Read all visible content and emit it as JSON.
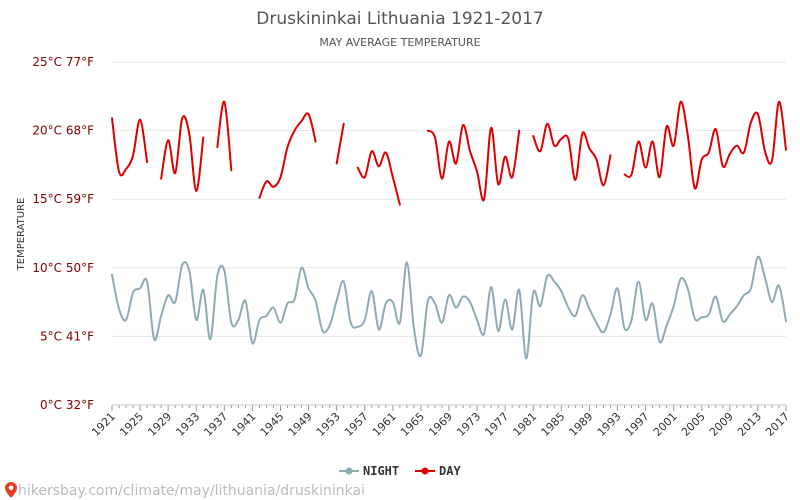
{
  "chart_data": {
    "type": "line",
    "title": "Druskininkai Lithuania 1921-2017",
    "subtitle": "MAY AVERAGE TEMPERATURE",
    "ylabel": "TEMPERATURE",
    "ylim": [
      0,
      25
    ],
    "xlim": [
      1921,
      2017
    ],
    "yticks": [
      {
        "value": 0,
        "label": "0°C 32°F"
      },
      {
        "value": 5,
        "label": "5°C 41°F"
      },
      {
        "value": 10,
        "label": "10°C 50°F"
      },
      {
        "value": 15,
        "label": "15°C 59°F"
      },
      {
        "value": 20,
        "label": "20°C 68°F"
      },
      {
        "value": 25,
        "label": "25°C 77°F"
      }
    ],
    "xticks": [
      1921,
      1925,
      1929,
      1933,
      1937,
      1941,
      1945,
      1949,
      1953,
      1957,
      1961,
      1965,
      1969,
      1973,
      1977,
      1981,
      1985,
      1989,
      1993,
      1997,
      2001,
      2005,
      2009,
      2013,
      2017
    ],
    "grid": true,
    "legend_position": "bottom-center",
    "series": [
      {
        "name": "NIGHT",
        "color": "#90aab4",
        "points": [
          [
            1921,
            9.5
          ],
          [
            1922,
            7.0
          ],
          [
            1923,
            6.2
          ],
          [
            1924,
            8.2
          ],
          [
            1925,
            8.5
          ],
          [
            1926,
            9.0
          ],
          [
            1927,
            4.8
          ],
          [
            1928,
            6.5
          ],
          [
            1929,
            8.0
          ],
          [
            1930,
            7.5
          ],
          [
            1931,
            10.2
          ],
          [
            1932,
            9.8
          ],
          [
            1933,
            6.2
          ],
          [
            1934,
            8.4
          ],
          [
            1935,
            4.8
          ],
          [
            1936,
            9.4
          ],
          [
            1937,
            9.8
          ],
          [
            1938,
            6.0
          ],
          [
            1939,
            6.2
          ],
          [
            1940,
            7.6
          ],
          [
            1941,
            4.5
          ],
          [
            1942,
            6.2
          ],
          [
            1943,
            6.5
          ],
          [
            1944,
            7.1
          ],
          [
            1945,
            6.0
          ],
          [
            1946,
            7.4
          ],
          [
            1947,
            7.7
          ],
          [
            1948,
            10.0
          ],
          [
            1949,
            8.5
          ],
          [
            1950,
            7.6
          ],
          [
            1951,
            5.4
          ],
          [
            1952,
            5.8
          ],
          [
            1953,
            7.6
          ],
          [
            1954,
            9.0
          ],
          [
            1955,
            6.0
          ],
          [
            1956,
            5.7
          ],
          [
            1957,
            6.2
          ],
          [
            1958,
            8.3
          ],
          [
            1959,
            5.5
          ],
          [
            1960,
            7.4
          ],
          [
            1961,
            7.5
          ],
          [
            1962,
            6.0
          ],
          [
            1963,
            10.4
          ],
          [
            1964,
            5.6
          ],
          [
            1965,
            3.6
          ],
          [
            1966,
            7.6
          ],
          [
            1967,
            7.4
          ],
          [
            1968,
            6.0
          ],
          [
            1969,
            8.0
          ],
          [
            1970,
            7.1
          ],
          [
            1971,
            7.9
          ],
          [
            1972,
            7.5
          ],
          [
            1973,
            6.2
          ],
          [
            1974,
            5.2
          ],
          [
            1975,
            8.6
          ],
          [
            1976,
            5.4
          ],
          [
            1977,
            7.7
          ],
          [
            1978,
            5.5
          ],
          [
            1979,
            8.4
          ],
          [
            1980,
            3.4
          ],
          [
            1981,
            8.2
          ],
          [
            1982,
            7.2
          ],
          [
            1983,
            9.4
          ],
          [
            1984,
            9.0
          ],
          [
            1985,
            8.3
          ],
          [
            1986,
            7.1
          ],
          [
            1987,
            6.5
          ],
          [
            1988,
            8.0
          ],
          [
            1989,
            7.0
          ],
          [
            1990,
            6.0
          ],
          [
            1991,
            5.3
          ],
          [
            1992,
            6.6
          ],
          [
            1993,
            8.5
          ],
          [
            1994,
            5.6
          ],
          [
            1995,
            6.2
          ],
          [
            1996,
            9.0
          ],
          [
            1997,
            6.2
          ],
          [
            1998,
            7.4
          ],
          [
            1999,
            4.6
          ],
          [
            2000,
            5.8
          ],
          [
            2001,
            7.2
          ],
          [
            2002,
            9.2
          ],
          [
            2003,
            8.5
          ],
          [
            2004,
            6.3
          ],
          [
            2005,
            6.4
          ],
          [
            2006,
            6.6
          ],
          [
            2007,
            7.9
          ],
          [
            2008,
            6.1
          ],
          [
            2009,
            6.6
          ],
          [
            2010,
            7.2
          ],
          [
            2011,
            8.0
          ],
          [
            2012,
            8.5
          ],
          [
            2013,
            10.8
          ],
          [
            2014,
            9.3
          ],
          [
            2015,
            7.5
          ],
          [
            2016,
            8.7
          ],
          [
            2017,
            6.1
          ]
        ]
      },
      {
        "name": "DAY",
        "color": "#dd0000",
        "points": [
          [
            1921,
            20.9
          ],
          [
            1922,
            17.0
          ],
          [
            1923,
            17.2
          ],
          [
            1924,
            18.2
          ],
          [
            1925,
            20.8
          ],
          [
            1926,
            17.7
          ],
          [
            1927,
            null
          ],
          [
            1928,
            16.5
          ],
          [
            1929,
            19.3
          ],
          [
            1930,
            16.9
          ],
          [
            1931,
            20.9
          ],
          [
            1932,
            19.8
          ],
          [
            1933,
            15.6
          ],
          [
            1934,
            19.5
          ],
          [
            1935,
            null
          ],
          [
            1936,
            18.8
          ],
          [
            1937,
            22.1
          ],
          [
            1938,
            17.1
          ],
          [
            1939,
            null
          ],
          [
            1940,
            null
          ],
          [
            1941,
            null
          ],
          [
            1942,
            15.1
          ],
          [
            1943,
            16.3
          ],
          [
            1944,
            15.9
          ],
          [
            1945,
            16.6
          ],
          [
            1946,
            18.8
          ],
          [
            1947,
            20.0
          ],
          [
            1948,
            20.7
          ],
          [
            1949,
            21.2
          ],
          [
            1950,
            19.2
          ],
          [
            1951,
            null
          ],
          [
            1952,
            null
          ],
          [
            1953,
            17.6
          ],
          [
            1954,
            20.5
          ],
          [
            1955,
            null
          ],
          [
            1956,
            17.3
          ],
          [
            1957,
            16.6
          ],
          [
            1958,
            18.5
          ],
          [
            1959,
            17.4
          ],
          [
            1960,
            18.4
          ],
          [
            1961,
            16.6
          ],
          [
            1962,
            14.6
          ],
          [
            1963,
            null
          ],
          [
            1964,
            null
          ],
          [
            1965,
            null
          ],
          [
            1966,
            20.0
          ],
          [
            1967,
            19.5
          ],
          [
            1968,
            16.5
          ],
          [
            1969,
            19.2
          ],
          [
            1970,
            17.6
          ],
          [
            1971,
            20.4
          ],
          [
            1972,
            18.5
          ],
          [
            1973,
            17.0
          ],
          [
            1974,
            15.0
          ],
          [
            1975,
            20.2
          ],
          [
            1976,
            16.1
          ],
          [
            1977,
            18.1
          ],
          [
            1978,
            16.6
          ],
          [
            1979,
            20.0
          ],
          [
            1980,
            null
          ],
          [
            1981,
            19.6
          ],
          [
            1982,
            18.5
          ],
          [
            1983,
            20.5
          ],
          [
            1984,
            18.9
          ],
          [
            1985,
            19.4
          ],
          [
            1986,
            19.4
          ],
          [
            1987,
            16.4
          ],
          [
            1988,
            19.8
          ],
          [
            1989,
            18.7
          ],
          [
            1990,
            17.9
          ],
          [
            1991,
            16.0
          ],
          [
            1992,
            18.2
          ],
          [
            1993,
            null
          ],
          [
            1994,
            16.8
          ],
          [
            1995,
            16.8
          ],
          [
            1996,
            19.2
          ],
          [
            1997,
            17.3
          ],
          [
            1998,
            19.2
          ],
          [
            1999,
            16.6
          ],
          [
            2000,
            20.3
          ],
          [
            2001,
            18.9
          ],
          [
            2002,
            22.1
          ],
          [
            2003,
            19.7
          ],
          [
            2004,
            15.8
          ],
          [
            2005,
            17.9
          ],
          [
            2006,
            18.4
          ],
          [
            2007,
            20.1
          ],
          [
            2008,
            17.4
          ],
          [
            2009,
            18.3
          ],
          [
            2010,
            18.9
          ],
          [
            2011,
            18.4
          ],
          [
            2012,
            20.6
          ],
          [
            2013,
            21.2
          ],
          [
            2014,
            18.5
          ],
          [
            2015,
            17.8
          ],
          [
            2016,
            22.1
          ],
          [
            2017,
            18.6
          ]
        ]
      }
    ]
  },
  "legend": {
    "items": [
      {
        "label": "NIGHT",
        "color": "#90aab4"
      },
      {
        "label": "DAY",
        "color": "#dd0000"
      }
    ]
  },
  "watermark": {
    "text": "hikersbay.com/climate/may/lithuania/druskininkai",
    "icon": "location-pin-icon",
    "icon_color": "#e04020"
  }
}
